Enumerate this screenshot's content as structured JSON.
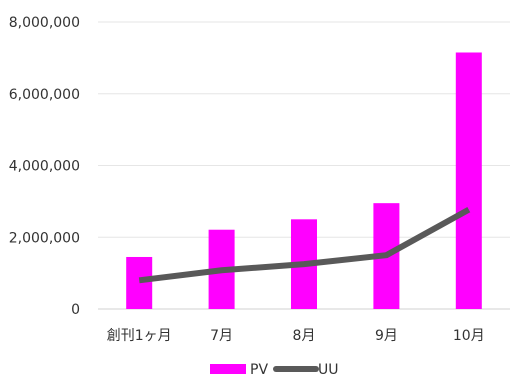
{
  "chart_data": {
    "type": "bar",
    "categories": [
      "創刊1ヶ月",
      "7月",
      "8月",
      "9月",
      "10月"
    ],
    "series": [
      {
        "name": "PV",
        "type": "bar",
        "color": "#ff00ff",
        "values": [
          1450000,
          2210000,
          2500000,
          2950000,
          7150000
        ]
      },
      {
        "name": "UU",
        "type": "line",
        "color": "#595959",
        "values": [
          800000,
          1080000,
          1250000,
          1500000,
          2770000
        ]
      }
    ],
    "ylim": [
      0,
      8000000
    ],
    "yticks": [
      0,
      2000000,
      4000000,
      6000000,
      8000000
    ],
    "ytick_labels": [
      "0",
      "2,000,000",
      "4,000,000",
      "6,000,000",
      "8,000,000"
    ],
    "grid": true,
    "legend_position": "bottom",
    "title": "",
    "xlabel": "",
    "ylabel": ""
  }
}
